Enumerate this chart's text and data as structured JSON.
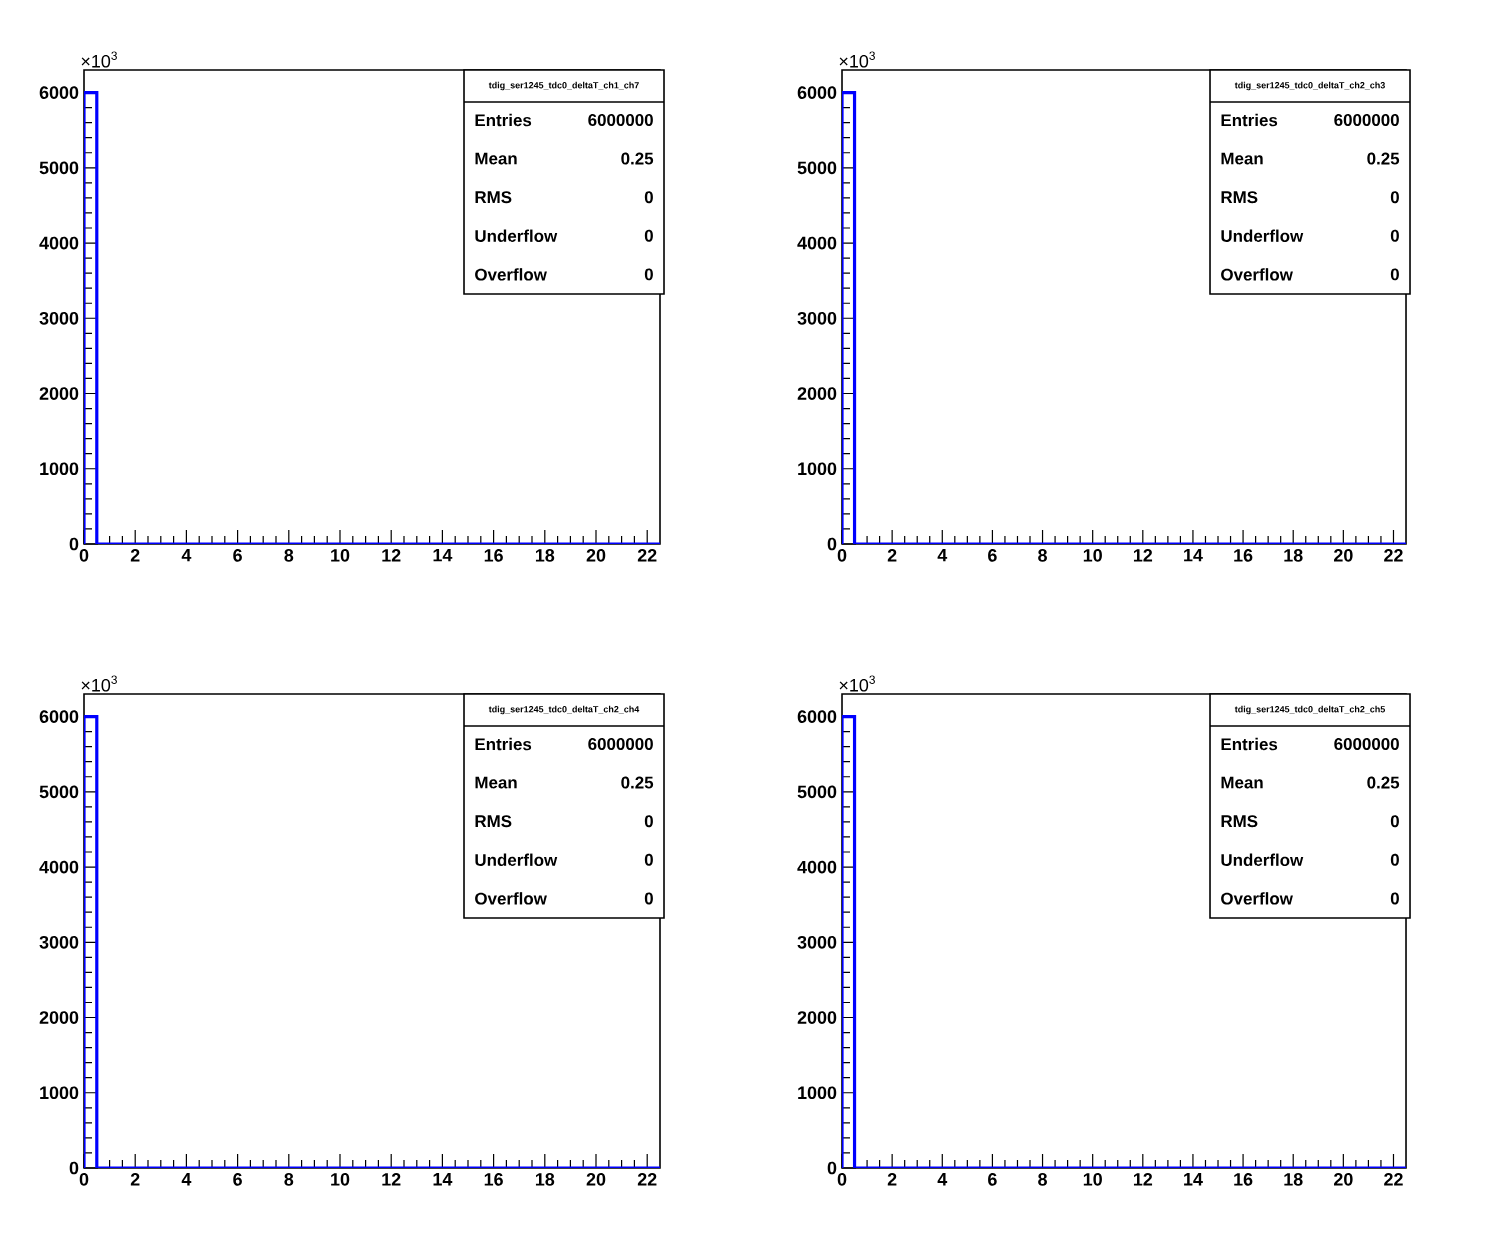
{
  "chart_data": [
    {
      "type": "histogram",
      "title": "tdig_ser1245_tdc0_deltaT_ch1_ch7",
      "color": "#0000ff",
      "bins": [
        0,
        0.5,
        22.5
      ],
      "values": [
        6000,
        0
      ],
      "xlim": [
        0,
        22.5
      ],
      "ylim": [
        0,
        6300
      ],
      "xticks": [
        0,
        2,
        4,
        6,
        8,
        10,
        12,
        14,
        16,
        18,
        20,
        22
      ],
      "yticks": [
        0,
        1000,
        2000,
        3000,
        4000,
        5000,
        6000
      ],
      "annotations": [
        "×10$^{3}$",
        "Entries",
        "6000000",
        "Mean",
        "0.25",
        "RMS",
        "0",
        "Underflow",
        "0",
        "Overflow",
        "0"
      ]
    },
    {
      "type": "histogram",
      "title": "tdig_ser1245_tdc0_deltaT_ch2_ch3",
      "color": "#0000ff",
      "bins": [
        0,
        0.5,
        22.5
      ],
      "values": [
        6000,
        0
      ],
      "xlim": [
        0,
        22.5
      ],
      "ylim": [
        0,
        6300
      ],
      "xticks": [
        0,
        2,
        4,
        6,
        8,
        10,
        12,
        14,
        16,
        18,
        20,
        22
      ],
      "yticks": [
        0,
        1000,
        2000,
        3000,
        4000,
        5000,
        6000
      ],
      "annotations": [
        "×10$^{3}$",
        "Entries",
        "6000000",
        "Mean",
        "0.25",
        "RMS",
        "0",
        "Underflow",
        "0",
        "Overflow",
        "0"
      ]
    },
    {
      "type": "histogram",
      "title": "tdig_ser1245_tdc0_deltaT_ch2_ch4",
      "color": "#0000ff",
      "bins": [
        0,
        0.5,
        22.5
      ],
      "values": [
        6000,
        0
      ],
      "xlim": [
        0,
        22.5
      ],
      "ylim": [
        0,
        6300
      ],
      "xticks": [
        0,
        2,
        4,
        6,
        8,
        10,
        12,
        14,
        16,
        18,
        20,
        22
      ],
      "yticks": [
        0,
        1000,
        2000,
        3000,
        4000,
        5000,
        6000
      ],
      "annotations": [
        "×10$^{3}$",
        "Entries",
        "6000000",
        "Mean",
        "0.25",
        "RMS",
        "0",
        "Underflow",
        "0",
        "Overflow",
        "0"
      ]
    },
    {
      "type": "histogram",
      "title": "tdig_ser1245_tdc0_deltaT_ch2_ch5",
      "color": "#0000ff",
      "bins": [
        0,
        0.5,
        22.5
      ],
      "values": [
        6000,
        0
      ],
      "xlim": [
        0,
        22.5
      ],
      "ylim": [
        0,
        6300
      ],
      "xticks": [
        0,
        2,
        4,
        6,
        8,
        10,
        12,
        14,
        16,
        18,
        20,
        22
      ],
      "yticks": [
        0,
        1000,
        2000,
        3000,
        4000,
        5000,
        6000
      ],
      "annotations": [
        "×10$^{3}$",
        "Entries",
        "6000000",
        "Mean",
        "0.25",
        "RMS",
        "0",
        "Underflow",
        "0",
        "Overflow",
        "0"
      ]
    }
  ]
}
